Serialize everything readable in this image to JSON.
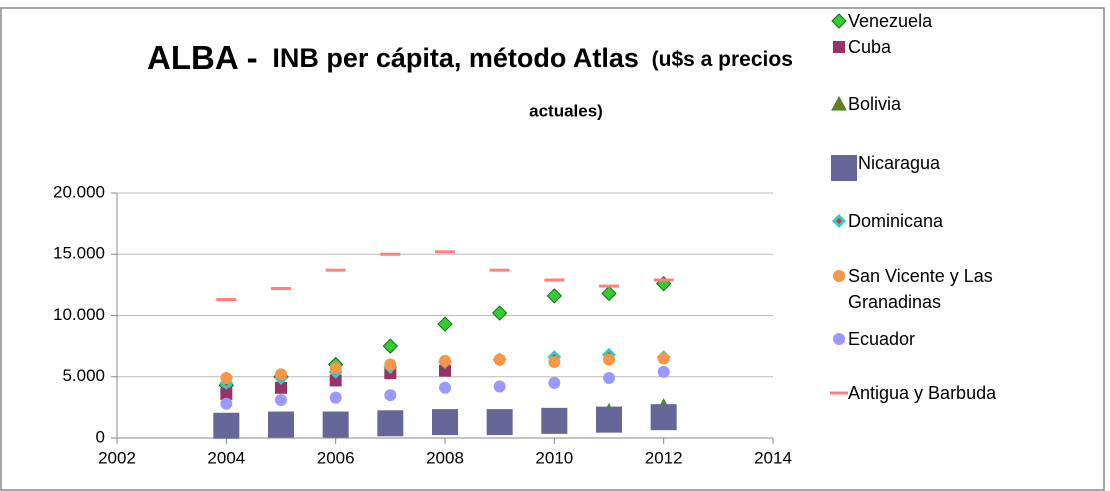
{
  "chart_data": {
    "type": "scatter",
    "title": [
      "ALBA -",
      "INB per cápita, método Atlas",
      "(u$s a precios",
      "actuales)"
    ],
    "x": [
      2004,
      2005,
      2006,
      2007,
      2008,
      2009,
      2010,
      2011,
      2012
    ],
    "xlim": [
      2002,
      2014
    ],
    "xticks": [
      2002,
      2004,
      2006,
      2008,
      2010,
      2012,
      2014
    ],
    "ylim": [
      0,
      20000
    ],
    "yticks": [
      0,
      {
        "value": 5000,
        "label": "5.000"
      },
      {
        "value": 10000,
        "label": "10.000"
      },
      {
        "value": 15000,
        "label": "15.000"
      },
      {
        "value": 20000,
        "label": "20.000"
      }
    ],
    "grid": true,
    "legend": "right",
    "series": [
      {
        "name": "Venezuela",
        "color": "#33cc33",
        "marker": "diamond",
        "values": [
          4300,
          5000,
          6000,
          7500,
          9300,
          10200,
          11600,
          11800,
          12600
        ]
      },
      {
        "name": "Cuba",
        "color": "#993366",
        "marker": "square",
        "values": [
          3600,
          4100,
          4700,
          5300,
          5500,
          null,
          null,
          null,
          null
        ]
      },
      {
        "name": "Bolivia",
        "color": "#6e7d1b",
        "marker": "triangle",
        "values": [
          1000,
          1000,
          1100,
          1300,
          1500,
          1600,
          1800,
          2200,
          2600
        ]
      },
      {
        "name": "Nicaragua",
        "color": "#666699",
        "marker": "bigsquare",
        "values": [
          1000,
          1100,
          1100,
          1200,
          1300,
          1300,
          1400,
          1500,
          1700
        ]
      },
      {
        "name": "Dominicana",
        "color": "#33cccc",
        "marker": "dotdiamond",
        "values": [
          4500,
          4900,
          5400,
          5800,
          6200,
          6400,
          6600,
          6800,
          6600
        ]
      },
      {
        "name": "San Vicente y Las Granadinas",
        "color": "#f79646",
        "marker": "circle",
        "values": [
          4900,
          5200,
          5700,
          6000,
          6300,
          6400,
          6200,
          6400,
          6500
        ]
      },
      {
        "name": "Ecuador",
        "color": "#9999ff",
        "marker": "circle",
        "values": [
          2800,
          3100,
          3300,
          3500,
          4100,
          4200,
          4500,
          4900,
          5400
        ]
      },
      {
        "name": "Antigua y Barbuda",
        "color": "#ff8080",
        "marker": "dash",
        "values": [
          11300,
          12200,
          13700,
          15000,
          15200,
          13700,
          12900,
          12400,
          12900
        ]
      }
    ]
  }
}
